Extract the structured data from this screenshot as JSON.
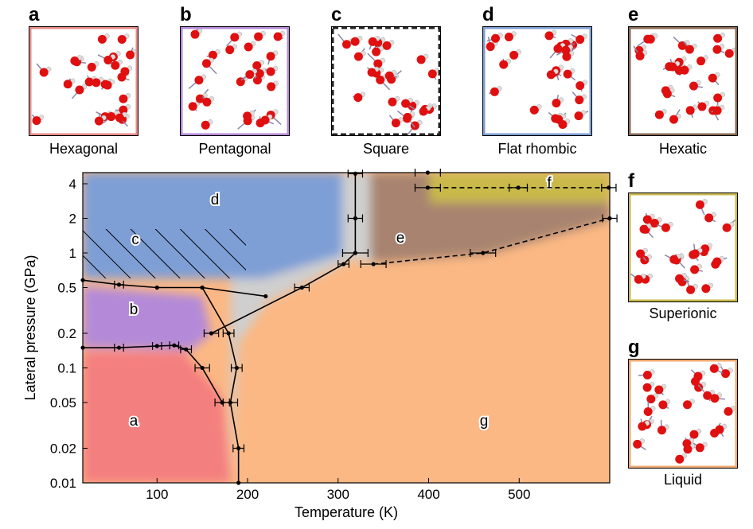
{
  "chart_data": {
    "type": "line",
    "x_label": "Temperature (K)",
    "y_label": "Lateral pressure (GPa)",
    "xlim": [
      18,
      600
    ],
    "ylim": [
      0.01,
      5
    ],
    "xticks": [
      100,
      200,
      300,
      400,
      500
    ],
    "yticks": [
      0.01,
      0.02,
      0.05,
      0.1,
      0.2,
      0.5,
      1,
      2,
      4
    ],
    "log_y": true,
    "annotations": [
      "a",
      "b",
      "c",
      "d",
      "e",
      "f",
      "g"
    ],
    "series": [
      {
        "color": "#000000",
        "style": "solid",
        "x": [
          18,
          58,
          100,
          119,
          132,
          150,
          172
        ],
        "y": [
          0.15,
          0.15,
          0.155,
          0.157,
          0.145,
          0.1,
          0.05
        ],
        "xerr": [
          0,
          5,
          5,
          5,
          6,
          8,
          8
        ]
      },
      {
        "color": "#000000",
        "style": "solid",
        "x": [
          18,
          58,
          100,
          150,
          220
        ],
        "y": [
          0.58,
          0.53,
          0.5,
          0.5,
          0.42
        ],
        "xerr": [
          0,
          5,
          0,
          0,
          0
        ]
      },
      {
        "color": "#000000",
        "style": "solid",
        "x": [
          150,
          179,
          188,
          181,
          190,
          190
        ],
        "y": [
          0.5,
          0.2,
          0.1,
          0.05,
          0.02,
          0.01
        ],
        "xerr": [
          0,
          6,
          6,
          8,
          6,
          0
        ]
      },
      {
        "color": "#000000",
        "style": "solid",
        "x": [
          160,
          260,
          306,
          319,
          319,
          319
        ],
        "y": [
          0.2,
          0.5,
          0.8,
          1,
          2,
          4.9
        ],
        "xerr": [
          8,
          8,
          6,
          14,
          8,
          8
        ]
      },
      {
        "color": "#000000",
        "style": "dashed",
        "x": [
          339,
          460,
          600
        ],
        "y": [
          0.8,
          1,
          2
        ],
        "xerr": [
          14,
          14,
          8
        ]
      },
      {
        "color": "#000000",
        "style": "dashed",
        "x": [
          399,
          499,
          599
        ],
        "y": [
          3.7,
          3.7,
          3.7
        ],
        "xerr": [
          14,
          10,
          8
        ]
      },
      {
        "color": "#000000",
        "style": "dashed",
        "x": [
          399
        ],
        "y": [
          5
        ],
        "xerr": [
          14
        ]
      }
    ]
  },
  "panels": [
    {
      "letter": "a",
      "label": "Hexagonal",
      "color": "#e98a8a"
    },
    {
      "letter": "b",
      "label": "Pentagonal",
      "color": "#b48ad8"
    },
    {
      "letter": "c",
      "label": "Square",
      "color": "#222222"
    },
    {
      "letter": "d",
      "label": "Flat rhombic",
      "color": "#7e9fd6"
    },
    {
      "letter": "e",
      "label": "Hexatic",
      "color": "#8a6a55"
    },
    {
      "letter": "f",
      "label": "Superionic",
      "color": "#c9b94a"
    },
    {
      "letter": "g",
      "label": "Liquid",
      "color": "#f0a870"
    }
  ]
}
